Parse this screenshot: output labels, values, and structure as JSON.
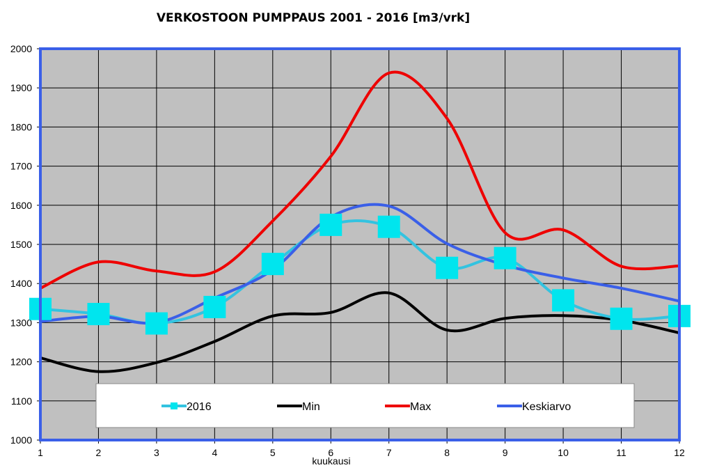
{
  "chart_data": {
    "type": "line",
    "title": "VERKOSTOON PUMPPAUS 2001 - 2016 [m3/vrk]",
    "xlabel": "kuukausi",
    "ylabel": "",
    "x": [
      1,
      2,
      3,
      4,
      5,
      6,
      7,
      8,
      9,
      10,
      11,
      12
    ],
    "xlim": [
      1,
      12
    ],
    "ylim": [
      1000,
      2000
    ],
    "yticks": [
      1000,
      1100,
      1200,
      1300,
      1400,
      1500,
      1600,
      1700,
      1800,
      1900,
      2000
    ],
    "grid": true,
    "legend_position": "bottom",
    "plot_background": "#c0c0c0",
    "series": [
      {
        "name": "2016",
        "color": "#33c3e0",
        "marker": "square",
        "marker_color": "#00e5ee",
        "values": [
          1335,
          1322,
          1298,
          1340,
          1450,
          1550,
          1545,
          1440,
          1465,
          1357,
          1310,
          1317
        ]
      },
      {
        "name": "Min",
        "color": "#000000",
        "values": [
          1210,
          1175,
          1198,
          1252,
          1317,
          1326,
          1376,
          1281,
          1311,
          1318,
          1306,
          1274
        ]
      },
      {
        "name": "Max",
        "color": "#ee0000",
        "values": [
          1388,
          1455,
          1432,
          1430,
          1560,
          1725,
          1938,
          1822,
          1530,
          1537,
          1444,
          1445
        ]
      },
      {
        "name": "Keskiarvo",
        "color": "#3a5fe8",
        "values": [
          1303,
          1316,
          1300,
          1363,
          1435,
          1570,
          1598,
          1502,
          1447,
          1414,
          1388,
          1355
        ]
      }
    ]
  }
}
